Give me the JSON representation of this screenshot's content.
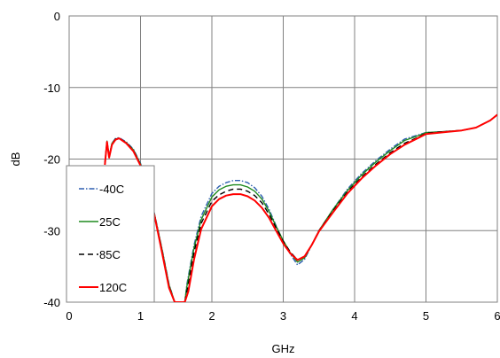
{
  "chart_data": {
    "type": "line",
    "title": "",
    "xlabel": "GHz",
    "ylabel": "dB",
    "xlim": [
      0,
      6
    ],
    "ylim": [
      -40,
      0
    ],
    "xticks": [
      0,
      1,
      2,
      3,
      4,
      5,
      6
    ],
    "yticks": [
      0,
      -10,
      -20,
      -30,
      -40
    ],
    "grid": true,
    "legend_position": "left",
    "series": [
      {
        "name": "-40C",
        "color": "#2e5fb0",
        "dash": "dashdot",
        "points": [
          [
            0.5,
            -20.5
          ],
          [
            0.53,
            -17.5
          ],
          [
            0.56,
            -19.6
          ],
          [
            0.6,
            -17.8
          ],
          [
            0.65,
            -17.1
          ],
          [
            0.7,
            -17.0
          ],
          [
            0.8,
            -17.6
          ],
          [
            0.9,
            -18.6
          ],
          [
            1.0,
            -20.6
          ],
          [
            1.1,
            -23.6
          ],
          [
            1.2,
            -27.8
          ],
          [
            1.3,
            -32.5
          ],
          [
            1.4,
            -37.5
          ],
          [
            1.48,
            -40
          ],
          [
            1.62,
            -40
          ],
          [
            1.65,
            -37.5
          ],
          [
            1.75,
            -32.0
          ],
          [
            1.85,
            -28.0
          ],
          [
            2.0,
            -24.8
          ],
          [
            2.1,
            -23.8
          ],
          [
            2.2,
            -23.3
          ],
          [
            2.3,
            -23.0
          ],
          [
            2.4,
            -23.0
          ],
          [
            2.5,
            -23.3
          ],
          [
            2.6,
            -24.0
          ],
          [
            2.7,
            -25.2
          ],
          [
            2.8,
            -27.0
          ],
          [
            2.9,
            -29.3
          ],
          [
            3.0,
            -31.5
          ],
          [
            3.1,
            -33.3
          ],
          [
            3.2,
            -34.8
          ],
          [
            3.3,
            -34.0
          ],
          [
            3.4,
            -32.0
          ],
          [
            3.5,
            -30.0
          ],
          [
            3.7,
            -27.0
          ],
          [
            3.9,
            -24.2
          ],
          [
            4.1,
            -22.0
          ],
          [
            4.3,
            -20.2
          ],
          [
            4.5,
            -18.6
          ],
          [
            4.7,
            -17.2
          ],
          [
            4.9,
            -16.6
          ],
          [
            5.0,
            -16.3
          ],
          [
            5.2,
            -16.2
          ],
          [
            5.5,
            -16.0
          ],
          [
            5.7,
            -15.6
          ],
          [
            5.9,
            -14.6
          ],
          [
            6.0,
            -13.8
          ]
        ]
      },
      {
        "name": "25C",
        "color": "#1f8a1f",
        "dash": "solid",
        "points": [
          [
            0.5,
            -20.6
          ],
          [
            0.53,
            -17.5
          ],
          [
            0.56,
            -19.6
          ],
          [
            0.6,
            -17.8
          ],
          [
            0.65,
            -17.2
          ],
          [
            0.7,
            -17.1
          ],
          [
            0.8,
            -17.7
          ],
          [
            0.9,
            -18.7
          ],
          [
            1.0,
            -20.7
          ],
          [
            1.1,
            -23.7
          ],
          [
            1.2,
            -27.9
          ],
          [
            1.3,
            -32.6
          ],
          [
            1.4,
            -37.6
          ],
          [
            1.48,
            -40
          ],
          [
            1.62,
            -40
          ],
          [
            1.65,
            -37.8
          ],
          [
            1.75,
            -32.4
          ],
          [
            1.85,
            -28.5
          ],
          [
            2.0,
            -25.3
          ],
          [
            2.1,
            -24.3
          ],
          [
            2.2,
            -23.8
          ],
          [
            2.3,
            -23.6
          ],
          [
            2.4,
            -23.6
          ],
          [
            2.5,
            -23.9
          ],
          [
            2.6,
            -24.5
          ],
          [
            2.7,
            -25.6
          ],
          [
            2.8,
            -27.3
          ],
          [
            2.9,
            -29.4
          ],
          [
            3.0,
            -31.4
          ],
          [
            3.1,
            -33.1
          ],
          [
            3.2,
            -34.4
          ],
          [
            3.3,
            -33.8
          ],
          [
            3.4,
            -32.0
          ],
          [
            3.5,
            -30.0
          ],
          [
            3.7,
            -27.0
          ],
          [
            3.9,
            -24.4
          ],
          [
            4.1,
            -22.2
          ],
          [
            4.3,
            -20.4
          ],
          [
            4.5,
            -18.8
          ],
          [
            4.7,
            -17.4
          ],
          [
            4.9,
            -16.7
          ],
          [
            5.0,
            -16.3
          ],
          [
            5.2,
            -16.2
          ],
          [
            5.5,
            -16.0
          ],
          [
            5.7,
            -15.6
          ],
          [
            5.9,
            -14.6
          ],
          [
            6.0,
            -13.8
          ]
        ]
      },
      {
        "name": "85C",
        "color": "#000000",
        "dash": "dashed",
        "points": [
          [
            0.5,
            -20.7
          ],
          [
            0.53,
            -17.6
          ],
          [
            0.56,
            -19.7
          ],
          [
            0.6,
            -17.9
          ],
          [
            0.65,
            -17.2
          ],
          [
            0.7,
            -17.1
          ],
          [
            0.8,
            -17.7
          ],
          [
            0.9,
            -18.8
          ],
          [
            1.0,
            -20.8
          ],
          [
            1.1,
            -23.8
          ],
          [
            1.2,
            -28.0
          ],
          [
            1.3,
            -32.8
          ],
          [
            1.4,
            -37.8
          ],
          [
            1.48,
            -40
          ],
          [
            1.62,
            -40
          ],
          [
            1.66,
            -38.0
          ],
          [
            1.75,
            -33.0
          ],
          [
            1.85,
            -29.0
          ],
          [
            2.0,
            -25.9
          ],
          [
            2.1,
            -25.0
          ],
          [
            2.2,
            -24.5
          ],
          [
            2.3,
            -24.2
          ],
          [
            2.4,
            -24.2
          ],
          [
            2.5,
            -24.5
          ],
          [
            2.6,
            -25.1
          ],
          [
            2.7,
            -26.1
          ],
          [
            2.8,
            -27.7
          ],
          [
            2.9,
            -29.6
          ],
          [
            3.0,
            -31.5
          ],
          [
            3.1,
            -33.0
          ],
          [
            3.2,
            -34.1
          ],
          [
            3.3,
            -33.6
          ],
          [
            3.4,
            -32.0
          ],
          [
            3.5,
            -30.0
          ],
          [
            3.7,
            -27.2
          ],
          [
            3.9,
            -24.6
          ],
          [
            4.1,
            -22.5
          ],
          [
            4.3,
            -20.7
          ],
          [
            4.5,
            -19.1
          ],
          [
            4.7,
            -17.8
          ],
          [
            4.9,
            -16.9
          ],
          [
            5.0,
            -16.4
          ],
          [
            5.2,
            -16.2
          ],
          [
            5.5,
            -16.0
          ],
          [
            5.7,
            -15.6
          ],
          [
            5.9,
            -14.6
          ],
          [
            6.0,
            -13.8
          ]
        ]
      },
      {
        "name": "120C",
        "color": "#ff0000",
        "dash": "solid",
        "points": [
          [
            0.5,
            -20.8
          ],
          [
            0.53,
            -17.6
          ],
          [
            0.56,
            -19.8
          ],
          [
            0.6,
            -18.0
          ],
          [
            0.65,
            -17.3
          ],
          [
            0.7,
            -17.1
          ],
          [
            0.8,
            -17.8
          ],
          [
            0.9,
            -18.9
          ],
          [
            1.0,
            -20.9
          ],
          [
            1.1,
            -23.9
          ],
          [
            1.2,
            -28.1
          ],
          [
            1.3,
            -33.0
          ],
          [
            1.4,
            -38.0
          ],
          [
            1.48,
            -40
          ],
          [
            1.62,
            -40
          ],
          [
            1.67,
            -38.5
          ],
          [
            1.75,
            -34.0
          ],
          [
            1.85,
            -29.8
          ],
          [
            2.0,
            -26.6
          ],
          [
            2.1,
            -25.6
          ],
          [
            2.2,
            -25.1
          ],
          [
            2.3,
            -24.9
          ],
          [
            2.4,
            -24.9
          ],
          [
            2.5,
            -25.2
          ],
          [
            2.6,
            -25.8
          ],
          [
            2.7,
            -26.8
          ],
          [
            2.8,
            -28.2
          ],
          [
            2.9,
            -30.0
          ],
          [
            3.0,
            -31.8
          ],
          [
            3.1,
            -33.2
          ],
          [
            3.2,
            -34.1
          ],
          [
            3.3,
            -33.6
          ],
          [
            3.4,
            -32.0
          ],
          [
            3.5,
            -30.1
          ],
          [
            3.7,
            -27.4
          ],
          [
            3.9,
            -24.8
          ],
          [
            4.1,
            -22.7
          ],
          [
            4.3,
            -20.9
          ],
          [
            4.5,
            -19.3
          ],
          [
            4.7,
            -18.0
          ],
          [
            4.9,
            -17.0
          ],
          [
            5.0,
            -16.5
          ],
          [
            5.2,
            -16.3
          ],
          [
            5.5,
            -16.0
          ],
          [
            5.7,
            -15.6
          ],
          [
            5.9,
            -14.6
          ],
          [
            6.0,
            -13.8
          ]
        ]
      }
    ]
  }
}
